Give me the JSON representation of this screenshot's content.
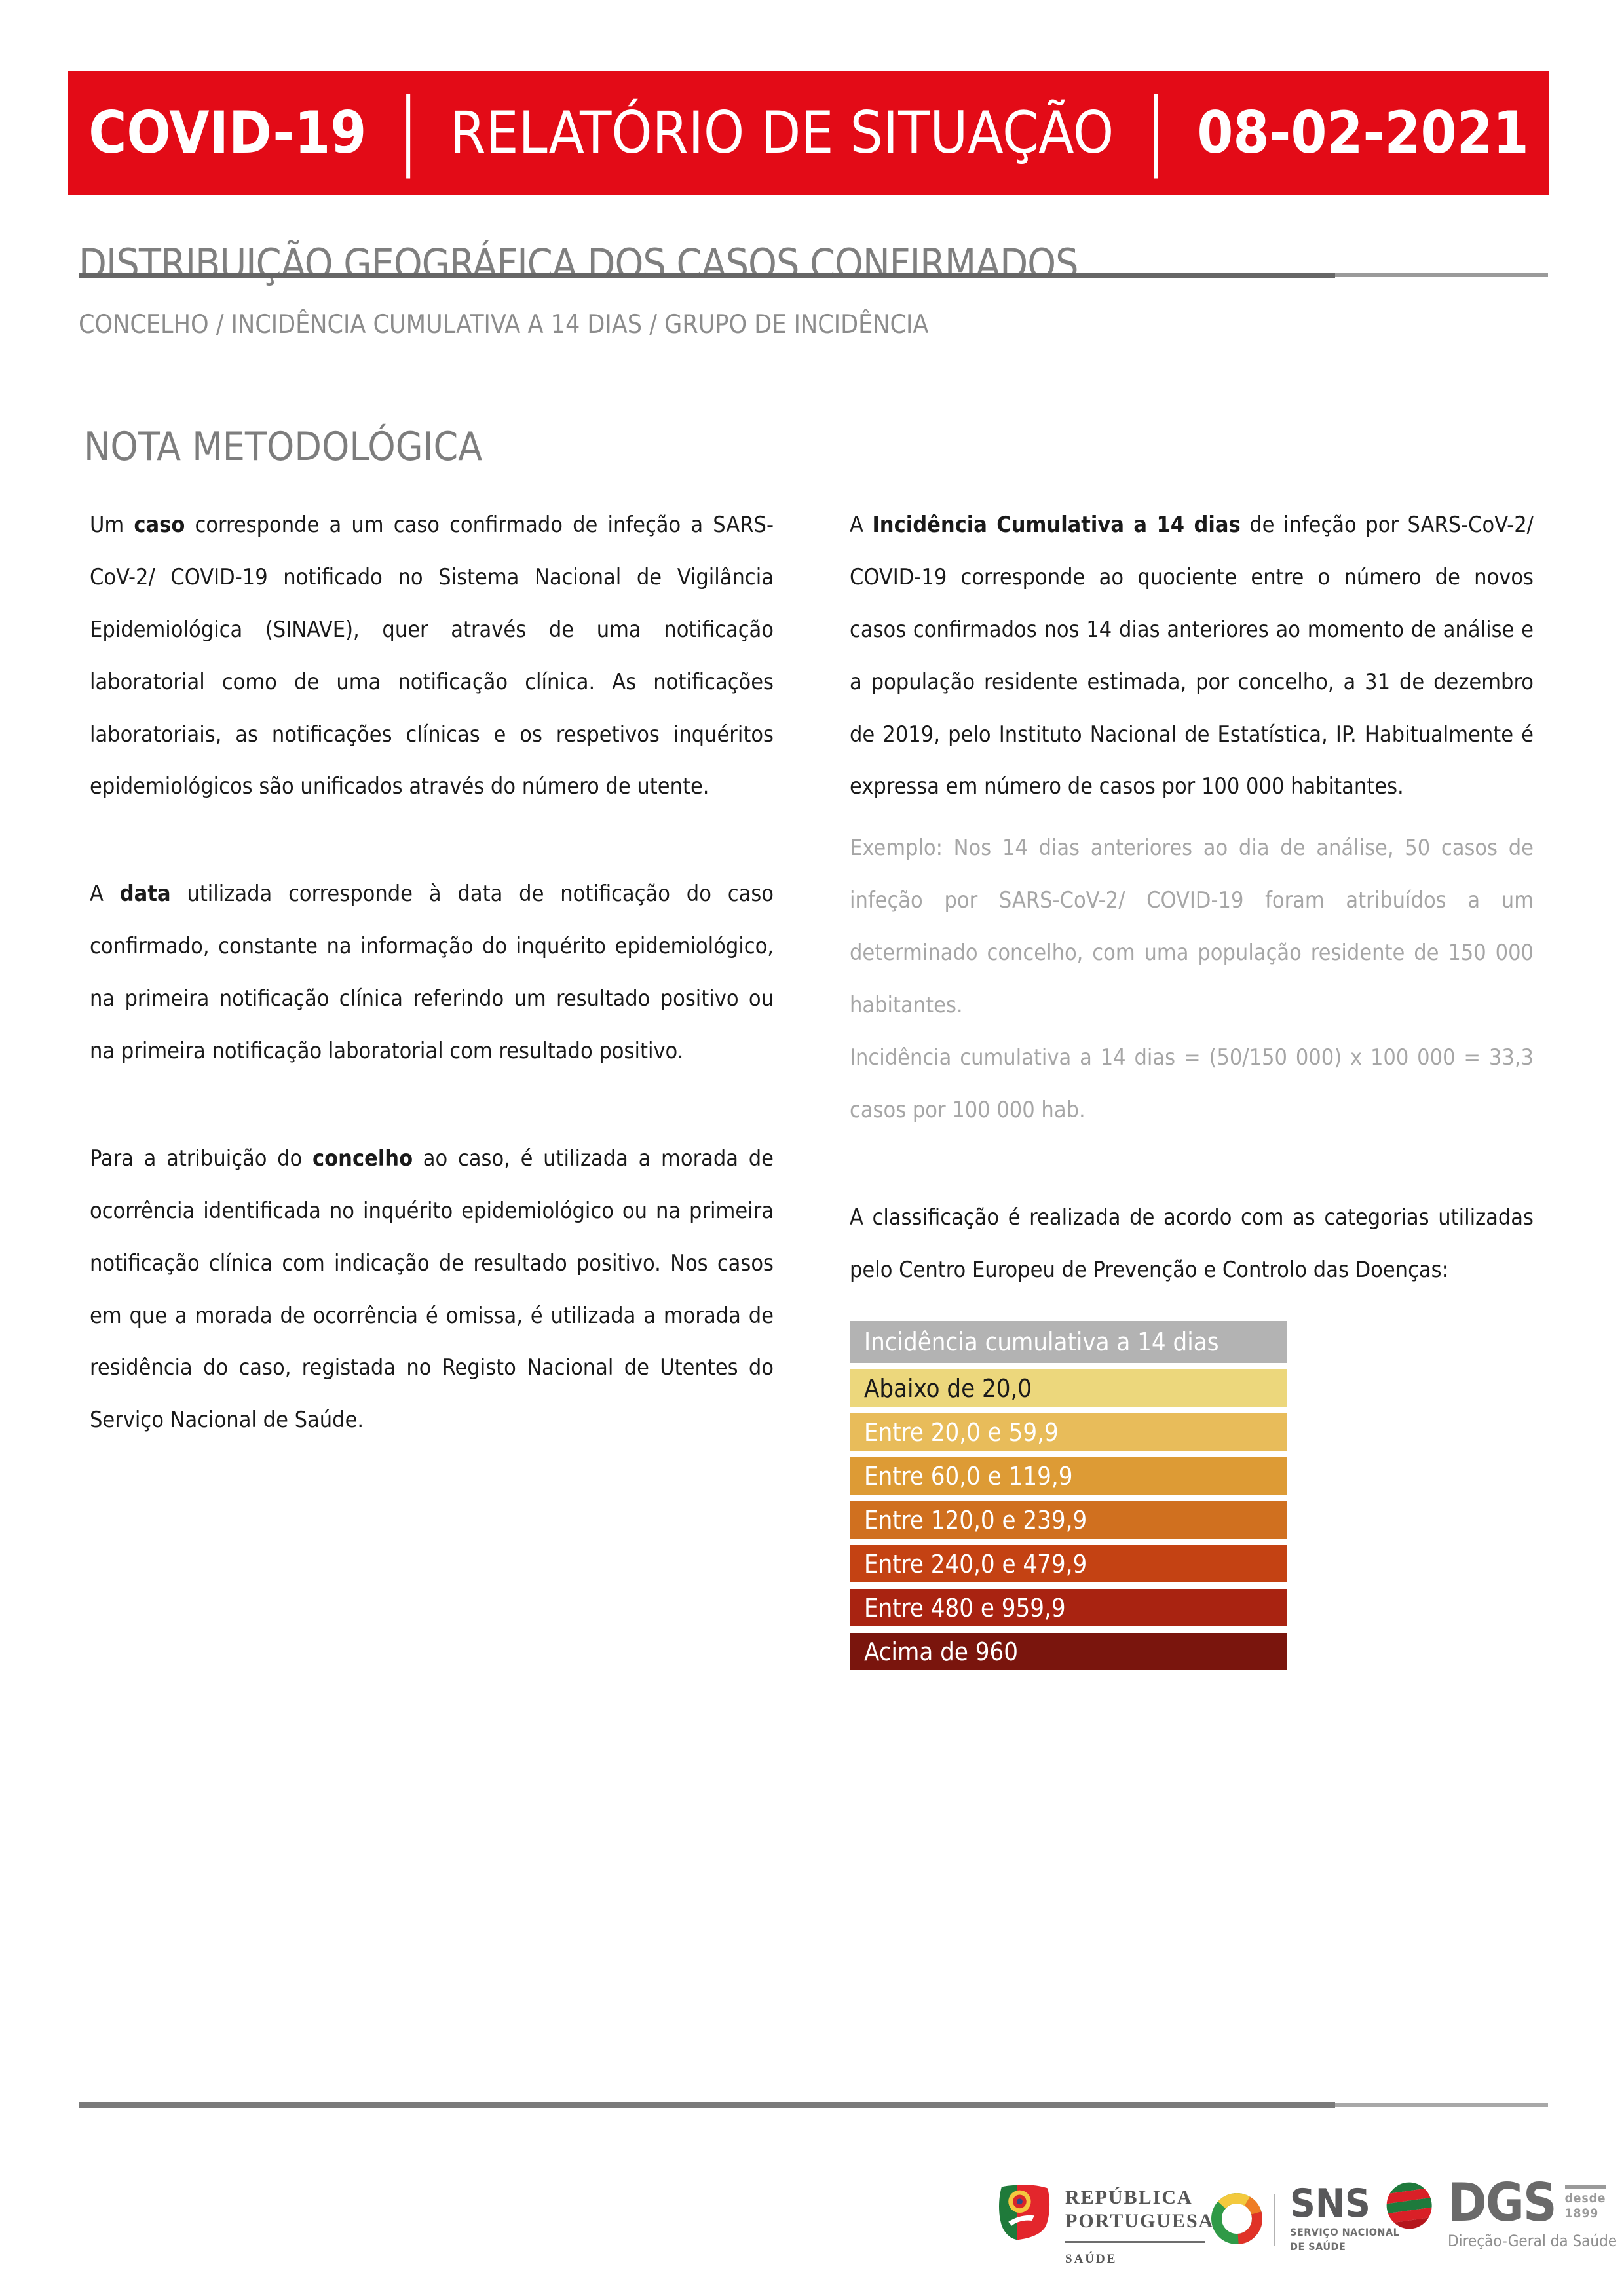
{
  "banner": {
    "product": "COVID-19",
    "separator": "|",
    "report_title": "RELATÓRIO DE SITUAÇÃO",
    "date": "08-02-2021"
  },
  "header": {
    "title": "DISTRIBUIÇÃO GEOGRÁFICA DOS CASOS CONFIRMADOS",
    "subtitle": "CONCELHO / INCIDÊNCIA CUMULATIVA A 14 DIAS / GRUPO DE INCIDÊNCIA"
  },
  "section": {
    "heading": "NOTA METODOLÓGICA"
  },
  "body": {
    "left": [
      {
        "cls": "",
        "segments": [
          {
            "t": "Um ",
            "b": false
          },
          {
            "t": "caso",
            "b": true
          },
          {
            "t": " corresponde a um caso confirmado de infeção a SARS-CoV-2/ COVID-19 notificado no Sistema Nacional de Vigilância Epidemiológica (SINAVE), quer através de uma notificação laboratorial como de uma notificação clínica. As notificações laboratoriais, as notificações clínicas e os respetivos inquéritos epidemiológicos são unificados através do número de utente.",
            "b": false
          }
        ]
      },
      {
        "cls": "",
        "segments": [
          {
            "t": "A ",
            "b": false
          },
          {
            "t": "data",
            "b": true
          },
          {
            "t": " utilizada corresponde à data de notificação do caso confirmado, constante na informação do inquérito epidemiológico, na primeira notificação clínica referindo um resultado positivo ou na primeira notificação laboratorial com resultado positivo.",
            "b": false
          }
        ]
      },
      {
        "cls": "",
        "segments": [
          {
            "t": "Para a atribuição do ",
            "b": false
          },
          {
            "t": "concelho",
            "b": true
          },
          {
            "t": " ao caso, é utilizada a morada de ocorrência identificada no inquérito epidemiológico ou na primeira notificação clínica com indicação de resultado positivo. Nos casos em que a morada de ocorrência é omissa, é utilizada a morada de residência do caso, registada no Registo Nacional de Utentes do Serviço Nacional de Saúde.",
            "b": false
          }
        ]
      }
    ],
    "right": [
      {
        "cls": "mb-sm",
        "segments": [
          {
            "t": "A ",
            "b": false
          },
          {
            "t": "Incidência Cumulativa a 14 dias",
            "b": true
          },
          {
            "t": " de infeção por SARS-CoV-2/ COVID-19 corresponde ao quociente entre o número de novos casos confirmados nos 14 dias anteriores ao momento de análise e a população residente estimada, por concelho, a 31 de dezembro de 2019, pelo Instituto Nacional de Estatística, IP. Habitualmente é expressa em número de casos por 100 000 habitantes.",
            "b": false
          }
        ]
      },
      {
        "cls": "example mb-0",
        "segments": [
          {
            "t": "Exemplo: Nos 14 dias anteriores ao dia de análise, 50 casos de infeção por SARS-CoV-2/ COVID-19 foram atribuídos a um determinado concelho, com uma população residente de 150 000 habitantes.",
            "b": false
          }
        ]
      },
      {
        "cls": "example",
        "segments": [
          {
            "t": "Incidência cumulativa a 14 dias = (50/150 000) x 100 000 = 33,3 casos por 100 000 hab.",
            "b": false
          }
        ]
      },
      {
        "cls": "mb-md",
        "segments": [
          {
            "t": "A classificação é realizada de acordo com as categorias utilizadas pelo Centro Europeu de Prevenção e Controlo das Doenças:",
            "b": false
          }
        ]
      }
    ]
  },
  "legend": {
    "header": {
      "label": "Incidência cumulativa a 14 dias",
      "bg": "#b3b3b3",
      "fg": "#ffffff"
    },
    "rows": [
      {
        "label": "Abaixo de 20,0",
        "bg": "#ecd77c",
        "fg": "#1a1a1a"
      },
      {
        "label": "Entre 20,0 e 59,9",
        "bg": "#e8bc5a",
        "fg": "#ffffff"
      },
      {
        "label": "Entre 60,0 e 119,9",
        "bg": "#dd9b35",
        "fg": "#ffffff"
      },
      {
        "label": "Entre 120,0 e 239,9",
        "bg": "#d0701f",
        "fg": "#ffffff"
      },
      {
        "label": "Entre 240,0 e 479,9",
        "bg": "#c44213",
        "fg": "#ffffff"
      },
      {
        "label": "Entre 480 e 959,9",
        "bg": "#a92311",
        "fg": "#ffffff"
      },
      {
        "label": "Acima de 960",
        "bg": "#7a150d",
        "fg": "#ffffff"
      }
    ]
  },
  "footer": {
    "republica": {
      "line1": "REPÚBLICA",
      "line2": "PORTUGUESA",
      "sector": "SAÚDE"
    },
    "sns": {
      "acronym": "SNS",
      "sub1": "SERVIÇO NACIONAL",
      "sub2": "DE SAÚDE"
    },
    "dgs": {
      "acronym": "DGS",
      "since1": "desde",
      "since2": "1899",
      "name": "Direção-Geral da Saúde"
    }
  },
  "colors": {
    "banner_red": "#e30b17",
    "title_gray": "#7f7f7f",
    "subtitle_gray": "#8c8c8c",
    "body_black": "#1a1a1a",
    "example_gray": "#a6a6a6",
    "rule_dark": "#666666",
    "rule_light": "#9a9a9a"
  }
}
